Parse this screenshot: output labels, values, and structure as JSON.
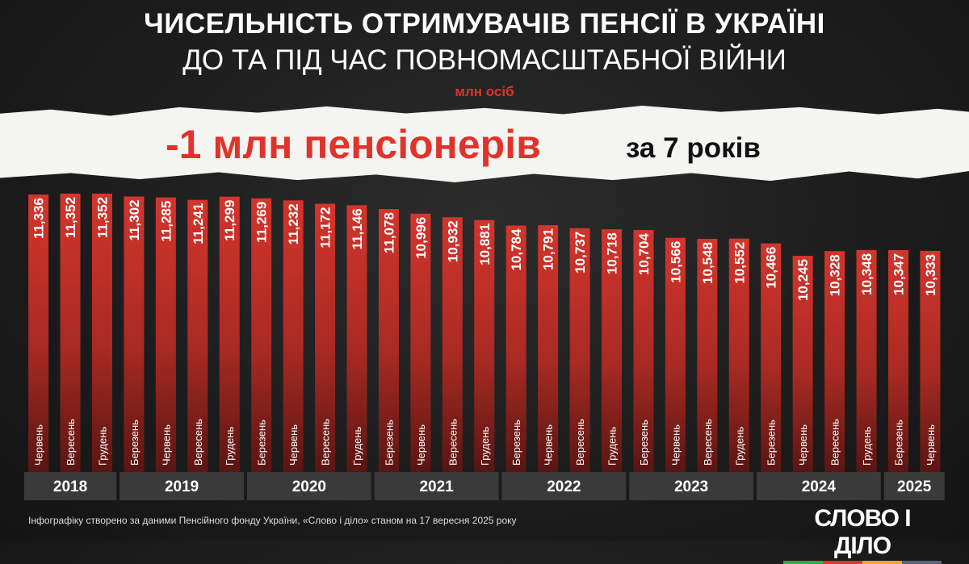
{
  "header": {
    "title": "ЧИСЕЛЬНІСТЬ ОТРИМУВАЧІВ ПЕНСІЇ В УКРАЇНІ",
    "subtitle": "ДО ТА ПІД ЧАС ПОВНОМАСШТАБНОЇ ВІЙНИ",
    "unit": "млн осіб"
  },
  "highlight": {
    "main": "-1 млн пенсіонерів",
    "secondary": "за 7 років"
  },
  "chart_data": {
    "type": "bar",
    "title": "ЧИСЕЛЬНІСТЬ ОТРИМУВАЧІВ ПЕНСІЇ В УКРАЇНІ",
    "ylabel": "млн осіб",
    "grid": false,
    "years": [
      {
        "year": "2018",
        "count": 3
      },
      {
        "year": "2019",
        "count": 4
      },
      {
        "year": "2020",
        "count": 4
      },
      {
        "year": "2021",
        "count": 4
      },
      {
        "year": "2022",
        "count": 4
      },
      {
        "year": "2023",
        "count": 4
      },
      {
        "year": "2024",
        "count": 4
      },
      {
        "year": "2025",
        "count": 2
      }
    ],
    "categories": [
      "Червень",
      "Вересень",
      "Грудень",
      "Березень",
      "Червень",
      "Вересень",
      "Грудень",
      "Березень",
      "Червень",
      "Вересень",
      "Грудень",
      "Березень",
      "Червень",
      "Вересень",
      "Грудень",
      "Березень",
      "Червень",
      "Вересень",
      "Грудень",
      "Березень",
      "Червень",
      "Вересень",
      "Грудень",
      "Березень",
      "Червень",
      "Вересень",
      "Грудень",
      "Березень",
      "Червень"
    ],
    "values": [
      11.336,
      11.352,
      11.352,
      11.302,
      11.285,
      11.241,
      11.299,
      11.269,
      11.232,
      11.172,
      11.146,
      11.078,
      10.996,
      10.932,
      10.881,
      10.784,
      10.791,
      10.737,
      10.718,
      10.704,
      10.566,
      10.548,
      10.552,
      10.466,
      10.245,
      10.328,
      10.348,
      10.347,
      10.333
    ],
    "value_labels": [
      "11,336",
      "11,352",
      "11,352",
      "11,302",
      "11,285",
      "11,241",
      "11,299",
      "11,269",
      "11,232",
      "11,172",
      "11,146",
      "11,078",
      "10,996",
      "10,932",
      "10,881",
      "10,784",
      "10,791",
      "10,737",
      "10,718",
      "10,704",
      "10,566",
      "10,548",
      "10,552",
      "10,466",
      "10,245",
      "10,328",
      "10,348",
      "10,347",
      "10,333"
    ],
    "colors": {
      "bar": "#d2352c",
      "bar_dark": "#5a1512",
      "year_band": "#3a3a3a"
    }
  },
  "footer": {
    "source": "Інфографіку створено за даними Пенсійного фонду України, «Слово і діло» станом на 17 вересня 2025 року",
    "logo": "СЛОВО І ДІЛО",
    "logo_colors": [
      "#3aa54a",
      "#d83a32",
      "#e9a92a",
      "#5a6478"
    ]
  }
}
